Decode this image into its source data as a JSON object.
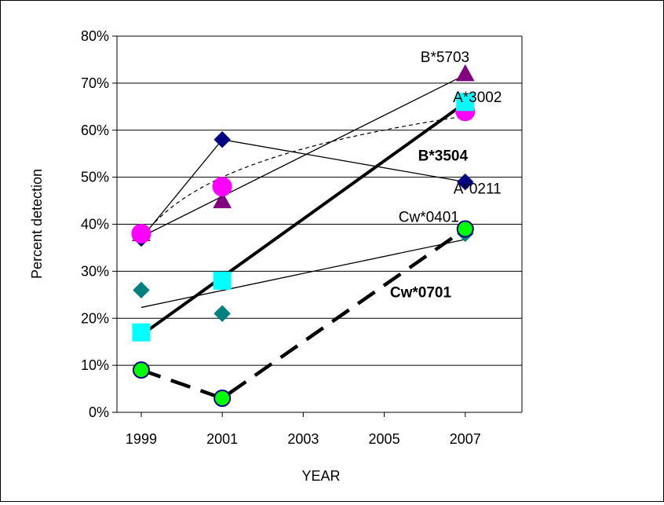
{
  "chart_data": {
    "type": "line",
    "xlabel": "YEAR",
    "ylabel": "Percent detection",
    "xlim": [
      1998.4,
      2008.4
    ],
    "ylim": [
      0,
      80
    ],
    "x_ticks": [
      "1999",
      "2001",
      "2003",
      "2005",
      "2007"
    ],
    "y_ticks": [
      "0%",
      "10%",
      "20%",
      "30%",
      "40%",
      "50%",
      "60%",
      "70%",
      "80%"
    ],
    "grid": "horizontal",
    "legend": "none",
    "series": [
      {
        "name": "A*0211",
        "x": [
          1999,
          2001,
          2007
        ],
        "values": [
          37,
          58,
          49
        ],
        "marker": "diamond",
        "color": "#000080",
        "line": "solid-thin",
        "trend": "none",
        "label_pos": [
          2007.3,
          46.5
        ],
        "label_bold": false
      },
      {
        "name": "B*5703",
        "x": [
          1999,
          2001,
          2007
        ],
        "values": [
          38,
          45,
          72
        ],
        "marker": "triangle",
        "color": "#800080",
        "line": "none",
        "trend": "linear-thin",
        "label_pos": [
          2006.5,
          74.5
        ],
        "label_bold": false
      },
      {
        "name": "A*3002",
        "x": [
          1999,
          2001,
          2007
        ],
        "values": [
          38,
          48,
          64
        ],
        "marker": "circle",
        "color": "#ff00ff",
        "line": "none",
        "trend": "log-dashed",
        "label_pos": [
          2007.3,
          66
        ],
        "label_bold": false
      },
      {
        "name": "B*3504",
        "x": [
          1999,
          2001,
          2007
        ],
        "values": [
          17,
          28,
          66
        ],
        "marker": "square",
        "color": "#00ffff",
        "line": "none",
        "trend": "linear-thick",
        "label_pos": [
          2006.45,
          53.5
        ],
        "label_bold": true
      },
      {
        "name": "Cw*0401",
        "x": [
          1999,
          2001,
          2007
        ],
        "values": [
          26,
          21,
          38
        ],
        "marker": "diamond",
        "color": "#008080",
        "line": "none",
        "trend": "linear-thin",
        "label_pos": [
          2006.1,
          40.5
        ],
        "label_bold": false
      },
      {
        "name": "Cw*0701",
        "x": [
          1999,
          2001,
          2007
        ],
        "values": [
          9,
          3,
          39
        ],
        "marker": "circle",
        "color": "#00ff00",
        "line": "dashed-thick",
        "trend": "none",
        "label_pos": [
          2005.9,
          24.5
        ],
        "label_bold": true
      }
    ]
  }
}
